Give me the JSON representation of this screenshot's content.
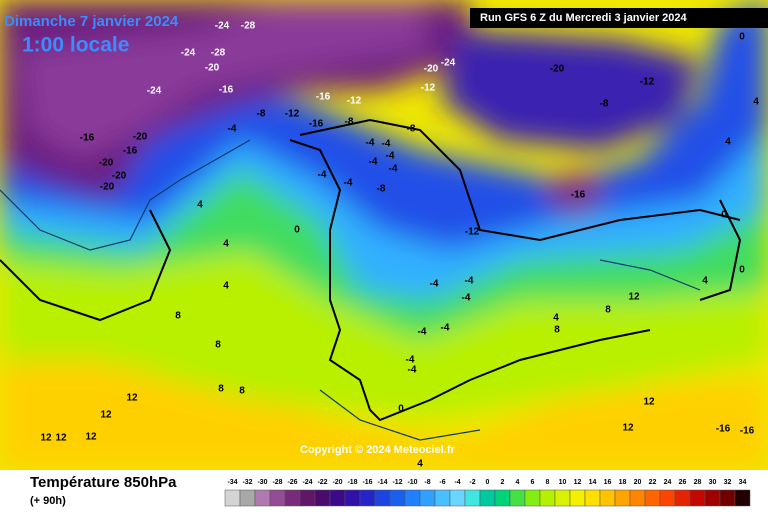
{
  "header": {
    "date": "Dimanche 7 janvier 2024",
    "time": "1:00 locale",
    "run": "Run GFS 6 Z du Mercredi 3 janvier 2024",
    "copyright": "Copyright © 2024 Meteociel.fr"
  },
  "footer": {
    "title": "Température 850hPa",
    "lead": "(+ 90h)"
  },
  "map": {
    "labels": [
      "-24",
      "-28",
      "-24",
      "-28",
      "-20",
      "-24",
      "-16",
      "-20",
      "-16",
      "-16",
      "-20",
      "-20",
      "-20",
      "-8",
      "-12",
      "-16",
      "-12",
      "-4",
      "-16",
      "-8",
      "-20",
      "-24",
      "-12",
      "-20",
      "-12",
      "-8",
      "-8",
      "-4",
      "-4",
      "-4",
      "-4",
      "-4",
      "-4",
      "-4",
      "-8",
      "-16",
      "-12",
      "0",
      "4",
      "4",
      "4",
      "8",
      "8",
      "8",
      "8",
      "12",
      "12",
      "12",
      "12",
      "12",
      "-4",
      "-4",
      "-4",
      "-4",
      "-4",
      "-4",
      "-4",
      "0",
      "4",
      "4",
      "8",
      "8",
      "12",
      "12",
      "12",
      "-16",
      "-16",
      "0",
      "0",
      "4",
      "4",
      "0",
      "4"
    ]
  },
  "scale": {
    "values": [
      -34,
      -32,
      -30,
      -28,
      -26,
      -24,
      -22,
      -20,
      -18,
      -16,
      -14,
      -12,
      -10,
      -8,
      -6,
      -4,
      -2,
      0,
      2,
      4,
      6,
      8,
      10,
      12,
      14,
      16,
      18,
      20,
      22,
      24,
      26,
      28,
      30,
      32,
      34
    ],
    "colors": [
      "#d4d4d4",
      "#a8a8a8",
      "#b07ab0",
      "#944c94",
      "#7a2a7a",
      "#62166a",
      "#4a0c6a",
      "#3a0a8a",
      "#3012a8",
      "#2424c8",
      "#1e44e0",
      "#1a60f0",
      "#2080ff",
      "#30a0ff",
      "#48c0ff",
      "#6ad6ff",
      "#40e6e0",
      "#00c8a0",
      "#00d47a",
      "#44e044",
      "#84ee10",
      "#b4f000",
      "#d8f200",
      "#f4f000",
      "#ffe000",
      "#ffc400",
      "#ffa400",
      "#ff8400",
      "#ff6400",
      "#ff4400",
      "#e42400",
      "#c40800",
      "#a00000",
      "#700000",
      "#200000"
    ]
  }
}
